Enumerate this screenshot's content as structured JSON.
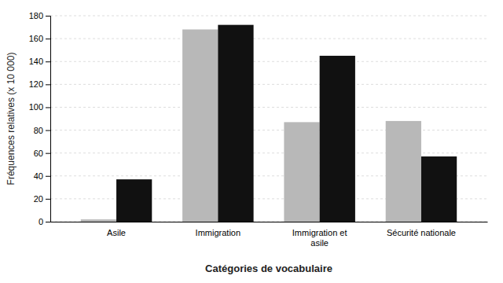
{
  "chart_data": {
    "type": "bar",
    "categories": [
      "Asile",
      "Immigration",
      "Immigration et\nasile",
      "Sécurité nationale"
    ],
    "series": [
      {
        "color": "#b8b8b8",
        "values": [
          2,
          168,
          87,
          88
        ]
      },
      {
        "color": "#111111",
        "values": [
          37,
          172,
          145,
          57
        ]
      }
    ],
    "xlabel": "Catégories de vocabulaire",
    "ylabel": "Fréquences relatives (x 10 000)",
    "ylim": [
      0,
      180
    ],
    "yticks": [
      0,
      20,
      40,
      60,
      80,
      100,
      120,
      140,
      160,
      180
    ],
    "grid": true
  }
}
